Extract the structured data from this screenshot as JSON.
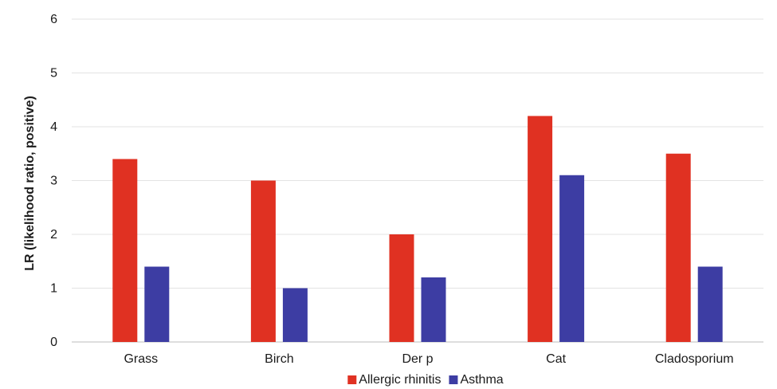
{
  "chart_data": {
    "type": "bar",
    "title": "",
    "xlabel": "",
    "ylabel": "LR (likelihood ratio, positive)",
    "ylim": [
      0,
      6
    ],
    "yticks": [
      0,
      1,
      2,
      3,
      4,
      5,
      6
    ],
    "grid": true,
    "legend_position": "bottom",
    "categories": [
      "Grass",
      "Birch",
      "Der p",
      "Cat",
      "Cladosporium"
    ],
    "series": [
      {
        "name": "Allergic rhinitis",
        "color": "#e03122",
        "values": [
          3.4,
          3.0,
          2.0,
          4.2,
          3.5
        ]
      },
      {
        "name": "Asthma",
        "color": "#3d3da3",
        "values": [
          1.4,
          1.0,
          1.2,
          3.1,
          1.4
        ]
      }
    ]
  }
}
